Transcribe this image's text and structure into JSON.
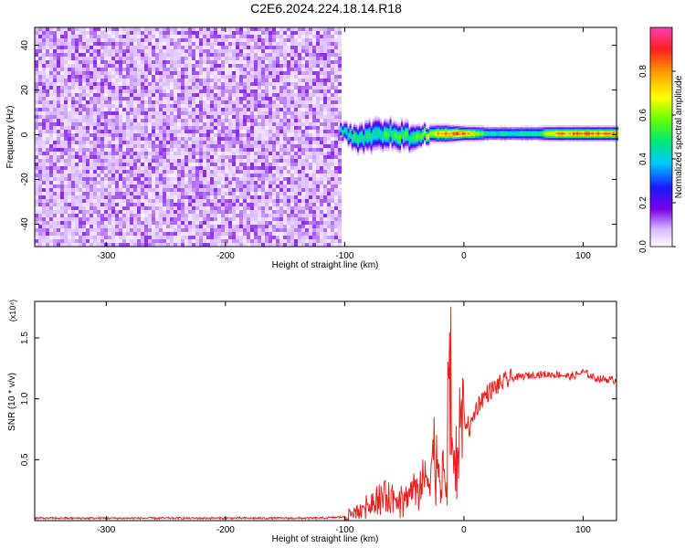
{
  "title": "C2E6.2024.224.18.14.R18",
  "chart_data": [
    {
      "type": "heatmap",
      "xlabel": "Height of straight line (km)",
      "ylabel": "Frequency (Hz)",
      "xlim": [
        -360,
        128
      ],
      "ylim": [
        -50,
        48
      ],
      "x_ticks": [
        -300,
        -200,
        -100,
        0,
        100
      ],
      "y_ticks": [
        -40,
        -20,
        0,
        20,
        40
      ],
      "colorbar": {
        "label": "Normalized spectral amplitude",
        "range": [
          0,
          1
        ],
        "ticks": [
          "0.0",
          "0.2",
          "0.4",
          "0.6",
          "0.8"
        ],
        "colors": [
          "#ffffff",
          "#d8b8ff",
          "#7a00e8",
          "#1a1aff",
          "#00c8ff",
          "#00e878",
          "#66ff00",
          "#ffff00",
          "#ffa000",
          "#ff2020",
          "#ff3cb4"
        ]
      },
      "noise_region": {
        "x_range": [
          -360,
          -105
        ],
        "freq_range": [
          -50,
          48
        ],
        "typical_amplitude": 0.15
      },
      "signal_band": [
        {
          "x": -104,
          "freq": 2,
          "half_width": 3,
          "peak": 0.5
        },
        {
          "x": -90,
          "freq": -2,
          "half_width": 5,
          "peak": 0.55
        },
        {
          "x": -75,
          "freq": 0,
          "half_width": 6,
          "peak": 0.5
        },
        {
          "x": -60,
          "freq": 1,
          "half_width": 5,
          "peak": 0.6
        },
        {
          "x": -45,
          "freq": -1,
          "half_width": 5,
          "peak": 0.55
        },
        {
          "x": -30,
          "freq": 1,
          "half_width": 3,
          "peak": 0.75
        },
        {
          "x": -15,
          "freq": 1,
          "half_width": 3,
          "peak": 0.85
        },
        {
          "x": 0,
          "freq": 1,
          "half_width": 2.5,
          "peak": 0.9
        },
        {
          "x": 20,
          "freq": 1,
          "half_width": 2.5,
          "peak": 0.5
        },
        {
          "x": 40,
          "freq": 1,
          "half_width": 2.5,
          "peak": 0.5
        },
        {
          "x": 60,
          "freq": 1,
          "half_width": 2.5,
          "peak": 0.55
        },
        {
          "x": 80,
          "freq": 1,
          "half_width": 2.5,
          "peak": 0.85
        },
        {
          "x": 100,
          "freq": 1,
          "half_width": 2.5,
          "peak": 0.9
        },
        {
          "x": 128,
          "freq": 1,
          "half_width": 2.5,
          "peak": 0.9
        }
      ]
    },
    {
      "type": "line",
      "xlabel": "Height of straight line (km)",
      "ylabel": "SNR (10 * v/v)",
      "y_multiplier": "(x10⁴)",
      "xlim": [
        -360,
        128
      ],
      "ylim": [
        0,
        1.8
      ],
      "x_ticks": [
        -300,
        -200,
        -100,
        0,
        100
      ],
      "y_ticks": [
        "0.5",
        "1.0",
        "1.5"
      ],
      "series": [
        {
          "color": "#e8201e",
          "x": [
            -360,
            -300,
            -200,
            -120,
            -100,
            -90,
            -80,
            -70,
            -60,
            -50,
            -40,
            -30,
            -25,
            -20,
            -15,
            -12,
            -10,
            -5,
            0,
            5,
            10,
            15,
            20,
            30,
            40,
            60,
            80,
            90,
            100,
            110,
            128
          ],
          "y": [
            0.02,
            0.02,
            0.02,
            0.02,
            0.03,
            0.08,
            0.15,
            0.22,
            0.2,
            0.18,
            0.3,
            0.35,
            0.6,
            0.45,
            0.3,
            1.8,
            0.5,
            0.65,
            0.85,
            0.75,
            0.92,
            1.0,
            1.05,
            1.12,
            1.17,
            1.2,
            1.2,
            1.18,
            1.22,
            1.17,
            1.15
          ],
          "noise": 0.05
        }
      ]
    }
  ]
}
